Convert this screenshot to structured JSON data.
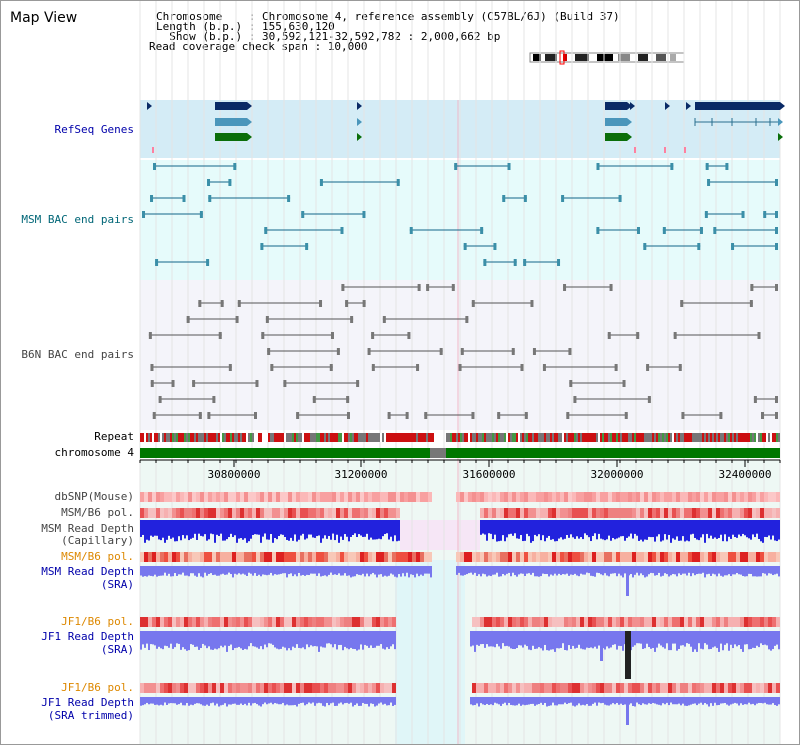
{
  "title": "Map View",
  "info": {
    "chromosome": "Chromosome    : Chromosome 4, reference assembly (C57BL/6J) (Build 37)",
    "length": "Length (b.p.) : 155,630,120",
    "show": "  Show (b.p.) : 30,592,121-32,592,782 : 2,000,662 bp",
    "read_coverage": "Read coverage check span : 10,000"
  },
  "tracks": {
    "refseq": "RefSeq Genes",
    "msm_bac": "MSM BAC end pairs",
    "b6n_bac": "B6N BAC end pairs",
    "repeat": "Repeat",
    "chromosome": "chromosome 4",
    "dbsnp": "dbSNP(Mouse)",
    "msm_b6_pol_1": "MSM/B6 pol.",
    "msm_read_depth_cap_1": "MSM Read Depth",
    "msm_read_depth_cap_2": "(Capillary)",
    "msm_b6_pol_2": "MSM/B6 pol.",
    "msm_read_depth_sra_1": "MSM Read Depth",
    "msm_read_depth_sra_2": "(SRA)",
    "jf1_b6_pol_1": "JF1/B6 pol.",
    "jf1_read_depth_sra_1": "JF1 Read Depth",
    "jf1_read_depth_sra_2": "(SRA)",
    "jf1_b6_pol_2": "JF1/B6 pol.",
    "jf1_read_depth_trim_1": "JF1 Read Depth",
    "jf1_read_depth_trim_2": "(SRA trimmed)"
  },
  "axis_ticks": [
    "30800000",
    "31200000",
    "31600000",
    "32000000",
    "32400000"
  ],
  "colors": {
    "refseq_label": "#0000aa",
    "msm_bac_label": "#006677",
    "b6n_bac_label": "#444444",
    "pol_orange": "#dd8800",
    "depth_blue": "#0000aa",
    "chromosome_green": "#007700"
  }
}
